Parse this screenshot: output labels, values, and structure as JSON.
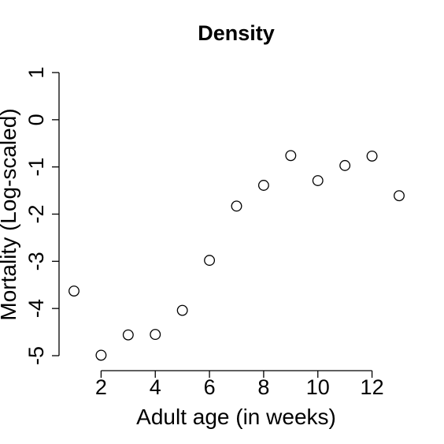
{
  "chart_data": {
    "type": "scatter",
    "title": "Density",
    "xlabel": "Adult age (in weeks)",
    "ylabel": "Mortality (Log-scaled)",
    "xlim": [
      1,
      13
    ],
    "ylim": [
      -5,
      1
    ],
    "xticks": [
      2,
      4,
      6,
      8,
      10,
      12
    ],
    "yticks": [
      -5,
      -4,
      -3,
      -2,
      -1,
      0,
      1
    ],
    "grid": false,
    "legend": false,
    "marker": "open-circle",
    "x": [
      1,
      2,
      3,
      4,
      5,
      6,
      7,
      8,
      9,
      10,
      11,
      12,
      13
    ],
    "y": [
      -3.63,
      -4.99,
      -4.56,
      -4.55,
      -4.04,
      -2.98,
      -1.83,
      -1.39,
      -0.76,
      -1.29,
      -0.97,
      -0.77,
      -1.61
    ]
  }
}
